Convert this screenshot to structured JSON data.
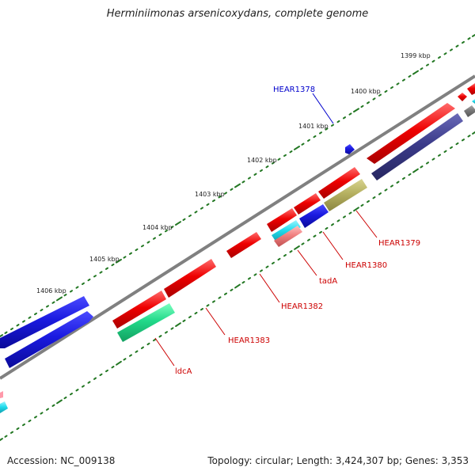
{
  "title": "Herminiimonas arsenicoxydans, complete genome",
  "footer": {
    "accession": "Accession: NC_009138",
    "summary": "Topology: circular; Length: 3,424,307 bp; Genes: 3,353"
  },
  "ticks": [
    "1399 kbp",
    "1400 kbp",
    "1401 kbp",
    "1402 kbp",
    "1403 kbp",
    "1404 kbp",
    "1405 kbp",
    "1406 kbp"
  ],
  "gene_labels": [
    {
      "text": "HEAR1378",
      "color": "#0000cc"
    },
    {
      "text": "HEAR1379",
      "color": "#cc0000"
    },
    {
      "text": "HEAR1380",
      "color": "#cc0000"
    },
    {
      "text": "tadA",
      "color": "#cc0000"
    },
    {
      "text": "HEAR1382",
      "color": "#cc0000"
    },
    {
      "text": "HEAR1383",
      "color": "#cc0000"
    },
    {
      "text": "ldcA",
      "color": "#cc0000"
    }
  ],
  "colors": {
    "backbone": "#808080",
    "tick": "#227722",
    "cds": "#ee0000",
    "blast_blue": "#1a1ae0",
    "navy": "#3b3b8a",
    "olive": "#b5b060",
    "sea_green": "#22d98a",
    "cyan": "#22ddee",
    "salmon": "#f08080",
    "pink": "#ff99aa",
    "gray_feature": "#777777"
  }
}
